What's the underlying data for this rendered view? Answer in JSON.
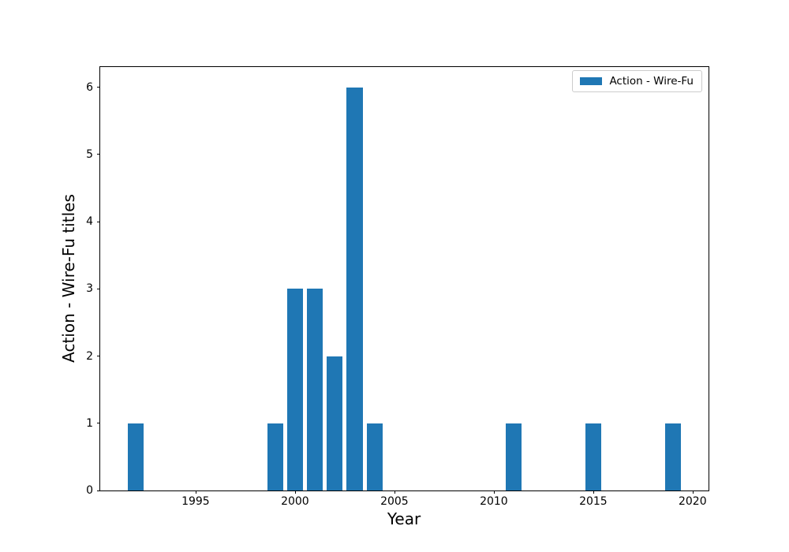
{
  "chart_data": {
    "type": "bar",
    "title": "",
    "xlabel": "Year",
    "ylabel": "Action - Wire-Fu titles",
    "categories": [
      1992,
      1999,
      2000,
      2001,
      2002,
      2003,
      2004,
      2011,
      2015,
      2019
    ],
    "values": [
      1,
      1,
      3,
      3,
      2,
      6,
      1,
      1,
      1,
      1
    ],
    "series_name": "Action - Wire-Fu",
    "bar_color": "#1f77b4",
    "bar_width_years": 0.8,
    "xlim": [
      1990.2,
      2020.8
    ],
    "ylim": [
      0,
      6.3
    ],
    "x_ticks": [
      1995,
      2000,
      2005,
      2010,
      2015,
      2020
    ],
    "y_ticks": [
      0,
      1,
      2,
      3,
      4,
      5,
      6
    ],
    "grid": false,
    "legend": {
      "position": "upper right",
      "entries": [
        {
          "label": "Action - Wire-Fu",
          "color": "#1f77b4"
        }
      ]
    }
  }
}
